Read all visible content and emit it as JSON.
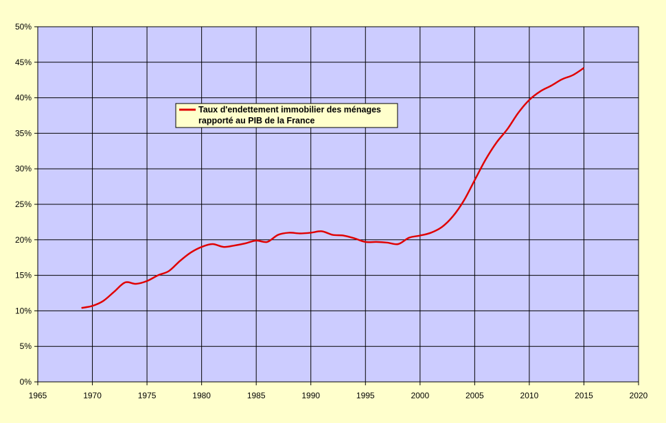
{
  "colors": {
    "background": "#ffffcc",
    "plot_area": "#ccccff",
    "grid": "#000000",
    "series_line": "#e00000",
    "legend_bg": "#ffffcc"
  },
  "chart_data": {
    "type": "line",
    "title": "",
    "xlabel": "",
    "ylabel": "",
    "xlim": [
      1965,
      2020
    ],
    "ylim": [
      0,
      50
    ],
    "x_ticks": [
      "1965",
      "1970",
      "1975",
      "1980",
      "1985",
      "1990",
      "1995",
      "2000",
      "2005",
      "2010",
      "2015",
      "2020"
    ],
    "y_ticks": [
      "0%",
      "5%",
      "10%",
      "15%",
      "20%",
      "25%",
      "30%",
      "35%",
      "40%",
      "45%",
      "50%"
    ],
    "grid": true,
    "legend_position": "upper-left",
    "series": [
      {
        "name": "Taux d'endettement immobilier des ménages rapporté au PIB de la France",
        "x": [
          1969,
          1970,
          1971,
          1972,
          1973,
          1974,
          1975,
          1976,
          1977,
          1978,
          1979,
          1980,
          1981,
          1982,
          1983,
          1984,
          1985,
          1986,
          1987,
          1988,
          1989,
          1990,
          1991,
          1992,
          1993,
          1994,
          1995,
          1996,
          1997,
          1998,
          1999,
          2000,
          2001,
          2002,
          2003,
          2004,
          2005,
          2006,
          2007,
          2008,
          2009,
          2010,
          2011,
          2012,
          2013,
          2014,
          2015
        ],
        "values": [
          10.4,
          10.7,
          11.4,
          12.7,
          14.0,
          13.8,
          14.2,
          15.0,
          15.6,
          17.0,
          18.2,
          19.0,
          19.4,
          19.0,
          19.2,
          19.5,
          19.9,
          19.7,
          20.7,
          21.0,
          20.9,
          21.0,
          21.2,
          20.7,
          20.6,
          20.2,
          19.7,
          19.7,
          19.6,
          19.4,
          20.3,
          20.6,
          21.0,
          21.8,
          23.3,
          25.5,
          28.4,
          31.3,
          33.7,
          35.6,
          37.9,
          39.7,
          40.9,
          41.7,
          42.6,
          43.2,
          44.2
        ]
      }
    ]
  },
  "legend": {
    "line1": "Taux d'endettement immobilier des ménages",
    "line2": "rapporté au PIB de la France"
  }
}
